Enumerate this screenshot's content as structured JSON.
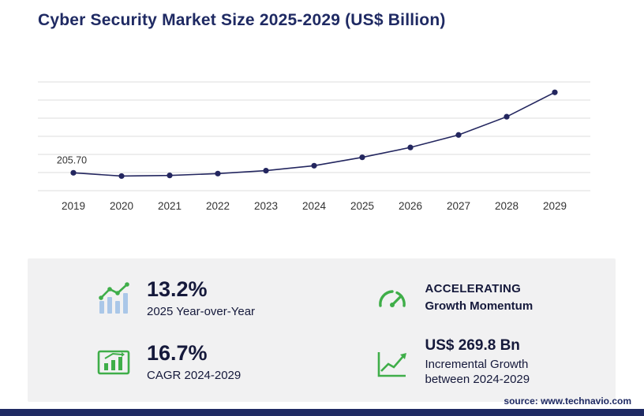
{
  "title": "Cyber Security Market Size 2025-2029 (US$ Billion)",
  "chart_data": {
    "type": "line",
    "title": "Cyber Security Market Size 2025-2029 (US$ Billion)",
    "x": [
      "2019",
      "2020",
      "2021",
      "2022",
      "2023",
      "2024",
      "2025",
      "2026",
      "2027",
      "2028",
      "2029"
    ],
    "series": [
      {
        "name": "Market size (US$ Billion)",
        "values": [
          205.7,
          193.8,
          196.1,
          202.8,
          213.6,
          231.9,
          262.6,
          299.0,
          345.0,
          412.0,
          501.7
        ]
      }
    ],
    "first_point_label": "205.70",
    "ylim": [
      140,
      540
    ],
    "grid": true,
    "legend": "none",
    "series_color": "#23265f",
    "gridline_color": "#dcdcdc",
    "tick_color": "#333333"
  },
  "stats": [
    {
      "icon": "bar-chart-growth-icon",
      "value": "13.2%",
      "label": "2025 Year-over-Year"
    },
    {
      "icon": "speedometer-icon",
      "value": "ACCELERATING",
      "label": "Growth Momentum"
    },
    {
      "icon": "framed-bar-chart-icon",
      "value": "16.7%",
      "label": "CAGR 2024-2029"
    },
    {
      "icon": "line-growth-icon",
      "value": "US$ 269.8 Bn",
      "label": "Incremental Growth between 2024-2029"
    }
  ],
  "source": "source: www.technavio.com",
  "colors": {
    "navy": "#1f2a63",
    "green": "#3fae49",
    "light_blue": "#aac7e8",
    "panel_gray": "#f1f1f2"
  }
}
